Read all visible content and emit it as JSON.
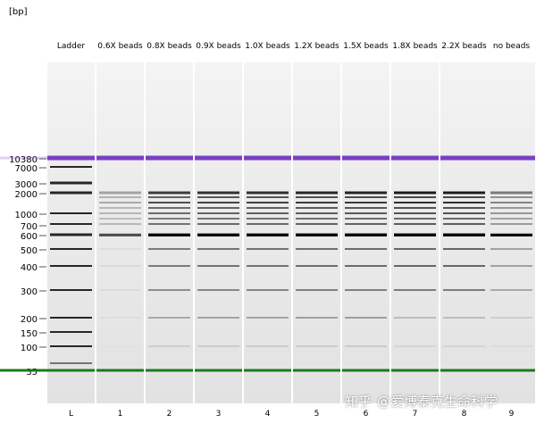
{
  "unit_label": "[bp]",
  "ladder_sizes": [
    10380,
    7000,
    3000,
    2000,
    1000,
    700,
    600,
    500,
    400,
    300,
    200,
    150,
    100,
    35
  ],
  "ladder_labels": [
    "10380",
    "7000",
    "3000",
    "2000",
    "1000",
    "700",
    "600",
    "500",
    "400",
    "300",
    "200",
    "150",
    "100",
    "35"
  ],
  "lanes": [
    {
      "header": "Ladder",
      "number": "L"
    },
    {
      "header": "0.6X beads",
      "number": "1"
    },
    {
      "header": "0.8X beads",
      "number": "2"
    },
    {
      "header": "0.9X beads",
      "number": "3"
    },
    {
      "header": "1.0X beads",
      "number": "4"
    },
    {
      "header": "1.2X beads",
      "number": "5"
    },
    {
      "header": "1.5X beads",
      "number": "6"
    },
    {
      "header": "1.8X beads",
      "number": "7"
    },
    {
      "header": "2.2X beads",
      "number": "8"
    },
    {
      "header": "no  beads",
      "number": "9"
    }
  ],
  "colors": {
    "upper_marker": "#7b3fc4",
    "lower_marker": "#1a7a1a"
  },
  "watermark": {
    "prefix": "知乎",
    "account": "@爱博泰克生命科学"
  }
}
